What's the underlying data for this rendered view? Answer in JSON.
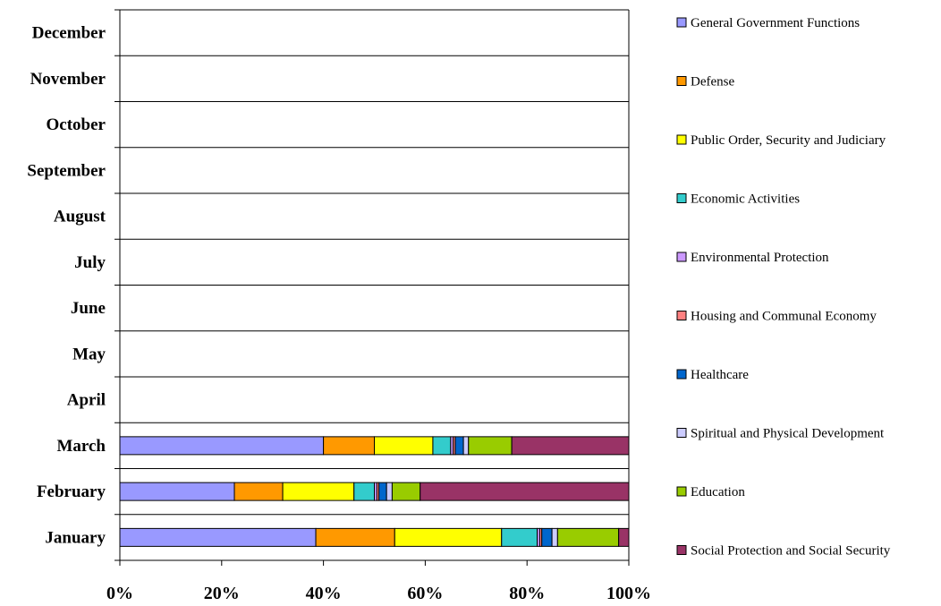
{
  "chart_data": {
    "type": "bar",
    "orientation": "horizontal",
    "stacked": "percent",
    "categories": [
      "January",
      "February",
      "March",
      "April",
      "May",
      "June",
      "July",
      "August",
      "September",
      "October",
      "November",
      "December"
    ],
    "series": [
      {
        "name": "General Government Functions",
        "color": "#9999FF",
        "values": [
          38.5,
          22.5,
          40.0,
          null,
          null,
          null,
          null,
          null,
          null,
          null,
          null,
          null
        ]
      },
      {
        "name": "Defense",
        "color": "#FF9900",
        "values": [
          15.5,
          9.5,
          10.0,
          null,
          null,
          null,
          null,
          null,
          null,
          null,
          null,
          null
        ]
      },
      {
        "name": "Public Order, Security and Judiciary",
        "color": "#FFFF00",
        "values": [
          21.0,
          14.0,
          11.5,
          null,
          null,
          null,
          null,
          null,
          null,
          null,
          null,
          null
        ]
      },
      {
        "name": "Economic Activities",
        "color": "#33CCCC",
        "values": [
          7.0,
          4.0,
          3.5,
          null,
          null,
          null,
          null,
          null,
          null,
          null,
          null,
          null
        ]
      },
      {
        "name": "Environmental Protection",
        "color": "#CC99FF",
        "values": [
          0.5,
          0.5,
          0.5,
          null,
          null,
          null,
          null,
          null,
          null,
          null,
          null,
          null
        ]
      },
      {
        "name": "Housing and Communal Economy",
        "color": "#FF8080",
        "values": [
          0.4,
          0.4,
          0.4,
          null,
          null,
          null,
          null,
          null,
          null,
          null,
          null,
          null
        ]
      },
      {
        "name": "Healthcare",
        "color": "#0066CC",
        "values": [
          2.0,
          1.5,
          1.6,
          null,
          null,
          null,
          null,
          null,
          null,
          null,
          null,
          null
        ]
      },
      {
        "name": "Spiritual and Physical Development",
        "color": "#CCCCFF",
        "values": [
          1.1,
          1.1,
          1.0,
          null,
          null,
          null,
          null,
          null,
          null,
          null,
          null,
          null
        ]
      },
      {
        "name": "Education",
        "color": "#99CC00",
        "values": [
          12.0,
          5.5,
          8.5,
          null,
          null,
          null,
          null,
          null,
          null,
          null,
          null,
          null
        ]
      },
      {
        "name": "Social Protection and Social Security",
        "color": "#993366",
        "values": [
          2.0,
          41.0,
          23.0,
          null,
          null,
          null,
          null,
          null,
          null,
          null,
          null,
          null
        ]
      }
    ],
    "xticks": [
      "0%",
      "20%",
      "40%",
      "60%",
      "80%",
      "100%"
    ],
    "xlim": [
      0,
      100
    ],
    "grid": "horizontal",
    "legend_position": "right",
    "title": "",
    "xlabel": "",
    "ylabel": ""
  }
}
